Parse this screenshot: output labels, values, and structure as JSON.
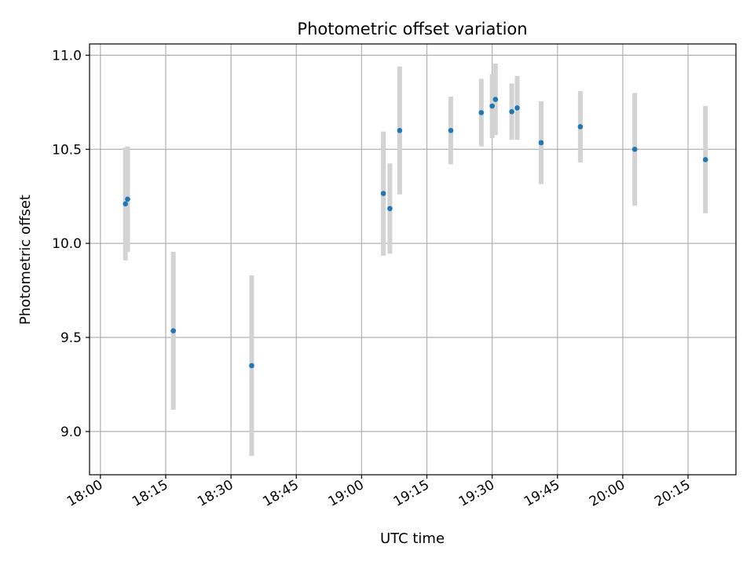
{
  "chart_data": {
    "type": "scatter",
    "title": "Photometric offset variation",
    "xlabel": "UTC time",
    "ylabel": "Photometric offset",
    "grid": true,
    "xlim_minutes": [
      1077.5,
      1226.0
    ],
    "ylim": [
      8.77,
      11.06
    ],
    "x_ticks": [
      {
        "minutes": 1080,
        "label": "18:00"
      },
      {
        "minutes": 1095,
        "label": "18:15"
      },
      {
        "minutes": 1110,
        "label": "18:30"
      },
      {
        "minutes": 1125,
        "label": "18:45"
      },
      {
        "minutes": 1140,
        "label": "19:00"
      },
      {
        "minutes": 1155,
        "label": "19:15"
      },
      {
        "minutes": 1170,
        "label": "19:30"
      },
      {
        "minutes": 1185,
        "label": "19:45"
      },
      {
        "minutes": 1200,
        "label": "20:00"
      },
      {
        "minutes": 1215,
        "label": "20:15"
      }
    ],
    "y_ticks": [
      {
        "value": 9.0,
        "label": "9.0"
      },
      {
        "value": 9.5,
        "label": "9.5"
      },
      {
        "value": 10.0,
        "label": "10.0"
      },
      {
        "value": 10.5,
        "label": "10.5"
      },
      {
        "value": 11.0,
        "label": "11.0"
      }
    ],
    "colors": {
      "point": "#1f77b4",
      "errorbar": "#d3d3d3",
      "grid": "#b0b0b0",
      "axis": "#000000"
    },
    "series": [
      {
        "name": "offset",
        "points": [
          {
            "time": "18:05:45",
            "minutes": 1085.75,
            "y": 10.21,
            "yerr": 0.3
          },
          {
            "time": "18:06:15",
            "minutes": 1086.25,
            "y": 10.235,
            "yerr": 0.28
          },
          {
            "time": "18:16:45",
            "minutes": 1096.75,
            "y": 9.535,
            "yerr": 0.42
          },
          {
            "time": "18:34:45",
            "minutes": 1114.75,
            "y": 9.35,
            "yerr": 0.48
          },
          {
            "time": "19:05:00",
            "minutes": 1145.0,
            "y": 10.265,
            "yerr": 0.33
          },
          {
            "time": "19:06:30",
            "minutes": 1146.5,
            "y": 10.185,
            "yerr": 0.24
          },
          {
            "time": "19:08:45",
            "minutes": 1148.75,
            "y": 10.6,
            "yerr": 0.34
          },
          {
            "time": "19:20:30",
            "minutes": 1160.5,
            "y": 10.6,
            "yerr": 0.18
          },
          {
            "time": "19:27:30",
            "minutes": 1167.5,
            "y": 10.695,
            "yerr": 0.18
          },
          {
            "time": "19:30:00",
            "minutes": 1170.0,
            "y": 10.73,
            "yerr": 0.17
          },
          {
            "time": "19:30:45",
            "minutes": 1170.75,
            "y": 10.765,
            "yerr": 0.19
          },
          {
            "time": "19:34:30",
            "minutes": 1174.5,
            "y": 10.7,
            "yerr": 0.15
          },
          {
            "time": "19:35:45",
            "minutes": 1175.75,
            "y": 10.72,
            "yerr": 0.17
          },
          {
            "time": "19:41:15",
            "minutes": 1181.25,
            "y": 10.535,
            "yerr": 0.22
          },
          {
            "time": "19:50:15",
            "minutes": 1190.25,
            "y": 10.62,
            "yerr": 0.19
          },
          {
            "time": "20:02:45",
            "minutes": 1202.75,
            "y": 10.5,
            "yerr": 0.3
          },
          {
            "time": "20:19:00",
            "minutes": 1219.0,
            "y": 10.445,
            "yerr": 0.285
          }
        ]
      }
    ]
  }
}
